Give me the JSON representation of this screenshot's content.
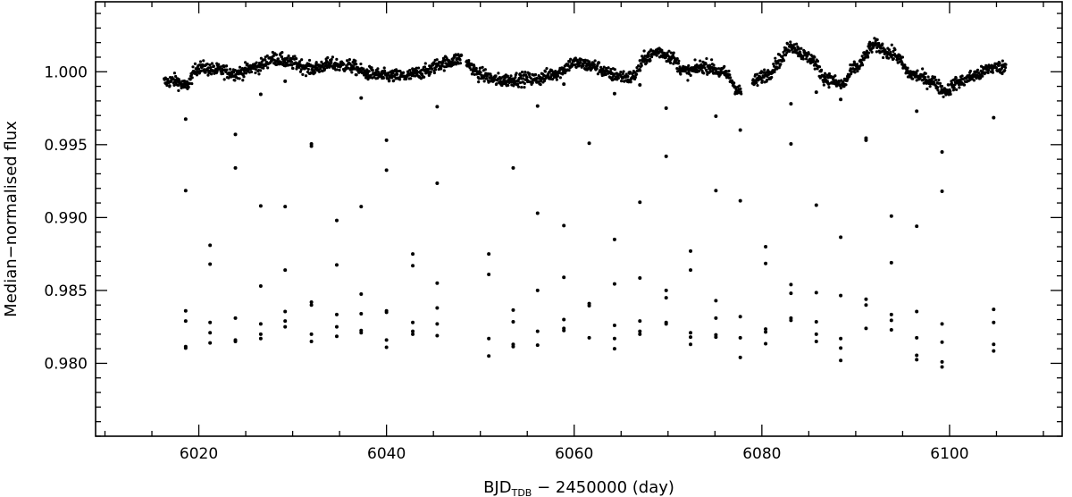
{
  "chart_data": {
    "type": "scatter",
    "title": "",
    "xlabel_main": "BJD",
    "xlabel_sub": "TDB",
    "xlabel_rest": " − 2450000 (day)",
    "ylabel": "Median−normalised flux",
    "xlim": [
      6009,
      6112
    ],
    "ylim": [
      0.975,
      1.0048
    ],
    "x_major_ticks": [
      6020,
      6040,
      6060,
      6080,
      6100
    ],
    "x_tick_labels": [
      "6020",
      "6040",
      "6060",
      "6080",
      "6100"
    ],
    "x_minor_step": 5,
    "y_major_ticks": [
      0.98,
      0.985,
      0.99,
      0.995,
      1.0
    ],
    "y_tick_labels": [
      "0.980",
      "0.985",
      "0.990",
      "0.995",
      "1.000"
    ],
    "y_minor_step": 0.001,
    "grid": false,
    "point_color": "#000000",
    "baseline_series": {
      "name": "",
      "note_x": "time samples",
      "segments": [
        {
          "x": [
            6016.3,
            6017.5,
            6018.5,
            6020.0,
            6022.0,
            6024.0,
            6026.0,
            6028.0,
            6030.0,
            6032.0,
            6034.0,
            6036.0,
            6038.0,
            6040.0,
            6042.0,
            6044.0,
            6046.0,
            6048.0
          ],
          "y": [
            0.9993,
            0.9994,
            0.999,
            1.0003,
            1.0001,
            0.9999,
            1.0003,
            1.0009,
            1.0006,
            1.0002,
            1.0005,
            1.0004,
            0.9999,
            0.9997,
            0.9997,
            1.0,
            1.0006,
            1.0009
          ]
        },
        {
          "x": [
            6048.5,
            6050.0,
            6052.0,
            6054.0,
            6056.0,
            6058.0,
            6060.0,
            6062.0,
            6064.0,
            6066.0,
            6068.0,
            6069.0,
            6070.0,
            6072.0,
            6074.0,
            6076.0,
            6077.8
          ],
          "y": [
            1.0006,
            0.9998,
            0.9994,
            0.9995,
            0.9995,
            0.9999,
            1.0006,
            1.0004,
            0.9998,
            0.9996,
            1.0011,
            1.0014,
            1.0011,
            1.0,
            1.0004,
            0.9999,
            0.9986
          ]
        },
        {
          "x": [
            6079.0,
            6080.5,
            6082.0,
            6083.0,
            6085.0,
            6087.0,
            6088.5,
            6090.0,
            6092.0,
            6094.0,
            6096.0,
            6098.0,
            6099.5,
            6101.0,
            6103.0,
            6104.5,
            6106.0
          ],
          "y": [
            0.9993,
            0.9998,
            1.0008,
            1.0018,
            1.001,
            0.9995,
            0.9991,
            1.0003,
            1.0018,
            1.0012,
            0.9998,
            0.9994,
            0.9987,
            0.9993,
            0.9998,
            1.0003,
            1.0003
          ]
        }
      ],
      "scatter_amplitude": 0.00045
    },
    "transit_points": [
      {
        "x": 6018.6,
        "y": [
          0.99675,
          0.99185,
          0.9836,
          0.9829,
          0.98115,
          0.98105
        ]
      },
      {
        "x": 6021.2,
        "y": [
          0.9881,
          0.9868,
          0.9828,
          0.9821,
          0.9814
        ]
      },
      {
        "x": 6023.9,
        "y": [
          0.9957,
          0.9934,
          0.9831,
          0.9816,
          0.9815
        ]
      },
      {
        "x": 6026.6,
        "y": [
          0.99845,
          0.9908,
          0.9853,
          0.9827,
          0.982,
          0.9817
        ]
      },
      {
        "x": 6029.2,
        "y": [
          0.99935,
          0.99075,
          0.9864,
          0.98355,
          0.9829,
          0.9825
        ]
      },
      {
        "x": 6032.0,
        "y": [
          0.99505,
          0.9949,
          0.9842,
          0.984,
          0.982,
          0.9815
        ]
      },
      {
        "x": 6034.7,
        "y": [
          0.9898,
          0.98675,
          0.98335,
          0.9825,
          0.98185
        ]
      },
      {
        "x": 6037.3,
        "y": [
          0.9982,
          0.99075,
          0.98475,
          0.9834,
          0.98225,
          0.9821
        ]
      },
      {
        "x": 6040.0,
        "y": [
          0.9953,
          0.99325,
          0.9836,
          0.9835,
          0.9816,
          0.9811
        ]
      },
      {
        "x": 6042.8,
        "y": [
          0.9875,
          0.9867,
          0.9828,
          0.9822,
          0.982
        ]
      },
      {
        "x": 6045.4,
        "y": [
          0.9976,
          0.99235,
          0.9855,
          0.9838,
          0.9827,
          0.9819
        ]
      },
      {
        "x": 6050.9,
        "y": [
          0.9875,
          0.9861,
          0.9817,
          0.9805
        ]
      },
      {
        "x": 6053.5,
        "y": [
          0.9934,
          0.98365,
          0.98285,
          0.9813,
          0.98115
        ]
      },
      {
        "x": 6056.1,
        "y": [
          0.99765,
          0.9903,
          0.985,
          0.9822,
          0.98125
        ]
      },
      {
        "x": 6058.9,
        "y": [
          0.99915,
          0.98945,
          0.9859,
          0.983,
          0.9824,
          0.98225
        ]
      },
      {
        "x": 6061.6,
        "y": [
          0.9951,
          0.9841,
          0.98395,
          0.98175
        ]
      },
      {
        "x": 6064.3,
        "y": [
          0.9985,
          0.9885,
          0.98545,
          0.9826,
          0.9817,
          0.981
        ]
      },
      {
        "x": 6067.0,
        "y": [
          0.9991,
          0.99105,
          0.98585,
          0.9829,
          0.9822,
          0.982
        ]
      },
      {
        "x": 6069.8,
        "y": [
          0.9975,
          0.9942,
          0.985,
          0.9845,
          0.9828,
          0.9827
        ]
      },
      {
        "x": 6072.4,
        "y": [
          0.9877,
          0.9864,
          0.9821,
          0.9818,
          0.9813
        ]
      },
      {
        "x": 6075.1,
        "y": [
          0.99695,
          0.99185,
          0.9843,
          0.9831,
          0.98195,
          0.9818
        ]
      },
      {
        "x": 6077.7,
        "y": [
          0.996,
          0.99115,
          0.9832,
          0.98175,
          0.9804
        ]
      },
      {
        "x": 6080.4,
        "y": [
          0.988,
          0.98685,
          0.98235,
          0.98215,
          0.98135
        ]
      },
      {
        "x": 6083.1,
        "y": [
          0.9978,
          0.99505,
          0.9854,
          0.9848,
          0.9831,
          0.98295
        ]
      },
      {
        "x": 6085.8,
        "y": [
          0.9986,
          0.99085,
          0.98485,
          0.98285,
          0.982,
          0.9815
        ]
      },
      {
        "x": 6088.4,
        "y": [
          0.9981,
          0.98865,
          0.98465,
          0.9817,
          0.98105,
          0.9802
        ]
      },
      {
        "x": 6091.1,
        "y": [
          0.99545,
          0.9953,
          0.9844,
          0.984,
          0.9824
        ]
      },
      {
        "x": 6093.8,
        "y": [
          0.9901,
          0.9869,
          0.98335,
          0.98295,
          0.9823
        ]
      },
      {
        "x": 6096.5,
        "y": [
          0.9973,
          0.9894,
          0.98355,
          0.98175,
          0.98055,
          0.98025
        ]
      },
      {
        "x": 6099.2,
        "y": [
          0.9945,
          0.9918,
          0.9827,
          0.98145,
          0.9801,
          0.97975
        ]
      },
      {
        "x": 6104.7,
        "y": [
          0.99685,
          0.9837,
          0.9828,
          0.9813,
          0.98085
        ]
      }
    ]
  }
}
